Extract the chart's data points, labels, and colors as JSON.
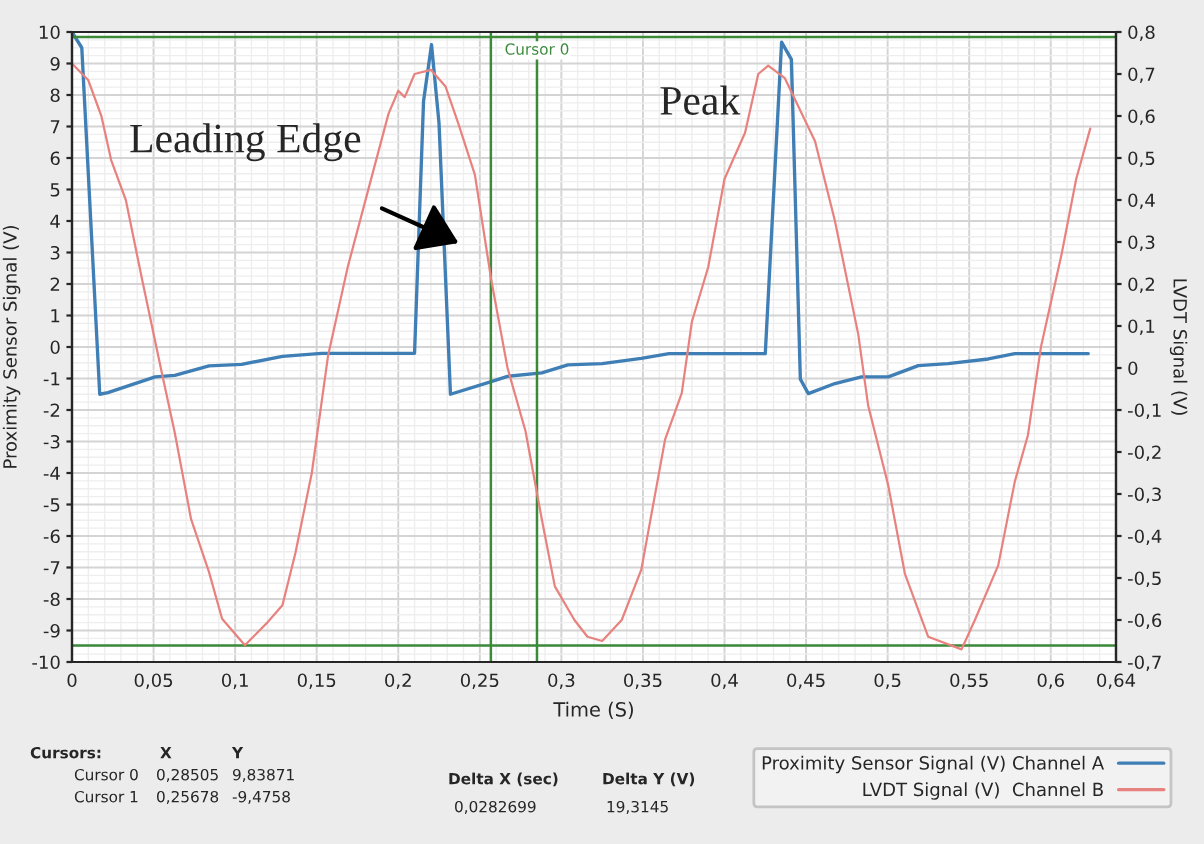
{
  "chart_data": {
    "type": "line",
    "xlabel": "Time (S)",
    "ylabel": "Proximity Sensor Signal (V)",
    "y2label": "LVDT Signal (V)",
    "xlim": [
      0,
      0.64
    ],
    "xticks": [
      0,
      {
        "value": 0.05,
        "label": "0,05"
      },
      {
        "value": 0.1,
        "label": "0,1"
      },
      {
        "value": 0.15,
        "label": "0,15"
      },
      {
        "value": 0.2,
        "label": "0,2"
      },
      {
        "value": 0.25,
        "label": "0,25"
      },
      {
        "value": 0.3,
        "label": "0,3"
      },
      {
        "value": 0.35,
        "label": "0,35"
      },
      {
        "value": 0.4,
        "label": "0,4"
      },
      {
        "value": 0.45,
        "label": "0,45"
      },
      {
        "value": 0.5,
        "label": "0,5"
      },
      {
        "value": 0.55,
        "label": "0,55"
      },
      {
        "value": 0.6,
        "label": "0,6"
      },
      {
        "value": 0.64,
        "label": "0,64"
      }
    ],
    "ylim": [
      -10,
      10
    ],
    "yticks": [
      -10,
      -9,
      -8,
      -7,
      -6,
      -5,
      -4,
      -3,
      -2,
      -1,
      0,
      1,
      2,
      3,
      4,
      5,
      6,
      7,
      8,
      9,
      10
    ],
    "y2lim": [
      -0.7,
      0.8
    ],
    "y2ticks": [
      {
        "value": -0.7,
        "label": "-0,7"
      },
      {
        "value": -0.6,
        "label": "-0,6"
      },
      {
        "value": -0.5,
        "label": "-0,5"
      },
      {
        "value": -0.4,
        "label": "-0,4"
      },
      {
        "value": -0.3,
        "label": "-0,3"
      },
      {
        "value": -0.2,
        "label": "-0,2"
      },
      {
        "value": -0.1,
        "label": "-0,1"
      },
      0,
      {
        "value": 0.1,
        "label": "0,1"
      },
      {
        "value": 0.2,
        "label": "0,2"
      },
      {
        "value": 0.3,
        "label": "0,3"
      },
      {
        "value": 0.4,
        "label": "0,4"
      },
      {
        "value": 0.5,
        "label": "0,5"
      },
      {
        "value": 0.6,
        "label": "0,6"
      },
      {
        "value": 0.7,
        "label": "0,7"
      },
      {
        "value": 0.8,
        "label": "0,8"
      }
    ],
    "series": [
      {
        "name": "Proximity Sensor Signal (V) Channel A",
        "color": "#3f7fb5",
        "x": [
          0,
          0.006,
          0.017,
          0.022,
          0.051,
          0.063,
          0.084,
          0.104,
          0.129,
          0.153,
          0.21,
          0.2155,
          0.2204,
          0.225,
          0.232,
          0.257,
          0.267,
          0.288,
          0.304,
          0.325,
          0.349,
          0.366,
          0.425,
          0.435,
          0.441,
          0.4465,
          0.4514,
          0.4677,
          0.484,
          0.5004,
          0.5188,
          0.537,
          0.5617,
          0.578,
          0.623
        ],
        "values": [
          10,
          9.5,
          -1.5,
          -1.45,
          -0.95,
          -0.9,
          -0.6,
          -0.55,
          -0.3,
          -0.2,
          -0.2,
          7.8,
          9.6,
          7.1,
          -1.5,
          -1.1,
          -0.93,
          -0.82,
          -0.57,
          -0.53,
          -0.36,
          -0.21,
          -0.21,
          9.68,
          9.13,
          -1.02,
          -1.48,
          -1.16,
          -0.95,
          -0.95,
          -0.59,
          -0.53,
          -0.38,
          -0.21,
          -0.21
        ]
      },
      {
        "name": "LVDT Signal (V)  Channel B",
        "color": "#e8827f",
        "axis": "y2",
        "x": [
          0,
          0.01,
          0.018,
          0.024,
          0.033,
          0.043,
          0.055,
          0.063,
          0.073,
          0.084,
          0.092,
          0.106,
          0.12,
          0.129,
          0.137,
          0.147,
          0.157,
          0.169,
          0.182,
          0.194,
          0.2,
          0.204,
          0.21,
          0.22,
          0.229,
          0.237,
          0.247,
          0.257,
          0.267,
          0.278,
          0.288,
          0.296,
          0.308,
          0.316,
          0.325,
          0.337,
          0.349,
          0.3636,
          0.3738,
          0.38,
          0.39,
          0.4,
          0.4126,
          0.4207,
          0.4268,
          0.437,
          0.4555,
          0.4677,
          0.482,
          0.4881,
          0.5004,
          0.5106,
          0.5249,
          0.5453,
          0.5535,
          0.5678,
          0.578,
          0.586,
          0.594,
          0.6066,
          0.6156,
          0.6242
        ],
        "values": [
          0.725,
          0.685,
          0.6,
          0.495,
          0.4,
          0.21,
          -0.01,
          -0.154,
          -0.36,
          -0.486,
          -0.597,
          -0.66,
          -0.605,
          -0.565,
          -0.44,
          -0.25,
          0.03,
          0.24,
          0.43,
          0.605,
          0.66,
          0.645,
          0.7,
          0.71,
          0.67,
          0.58,
          0.46,
          0.21,
          0.0,
          -0.15,
          -0.36,
          -0.52,
          -0.6,
          -0.64,
          -0.65,
          -0.6,
          -0.48,
          -0.17,
          -0.06,
          0.11,
          0.24,
          0.45,
          0.56,
          0.7,
          0.72,
          0.69,
          0.54,
          0.35,
          0.08,
          -0.09,
          -0.28,
          -0.49,
          -0.64,
          -0.67,
          -0.6,
          -0.47,
          -0.27,
          -0.16,
          0.05,
          0.27,
          0.45,
          0.57
        ]
      }
    ],
    "ref_lines": [
      {
        "axis": "x",
        "value": 0.28505,
        "label": "Cursor 0",
        "color": "#3a8a3a"
      },
      {
        "axis": "x",
        "value": 0.25678,
        "color": "#3a8a3a"
      },
      {
        "axis": "y",
        "value": 9.83871,
        "color": "#3a8a3a"
      },
      {
        "axis": "y",
        "value": -9.4758,
        "color": "#3a8a3a"
      }
    ],
    "annotations": [
      "Leading Edge",
      "Peak",
      "Cursors:",
      "X",
      "Y",
      "Cursor 0",
      "0,28505",
      "9,83871",
      "Cursor 1",
      "0,25678",
      "-9,4758",
      "Delta X (sec)",
      "0,0282699",
      "Delta Y (V)",
      "19,3145"
    ],
    "grid": true,
    "legend": "bottom right"
  }
}
